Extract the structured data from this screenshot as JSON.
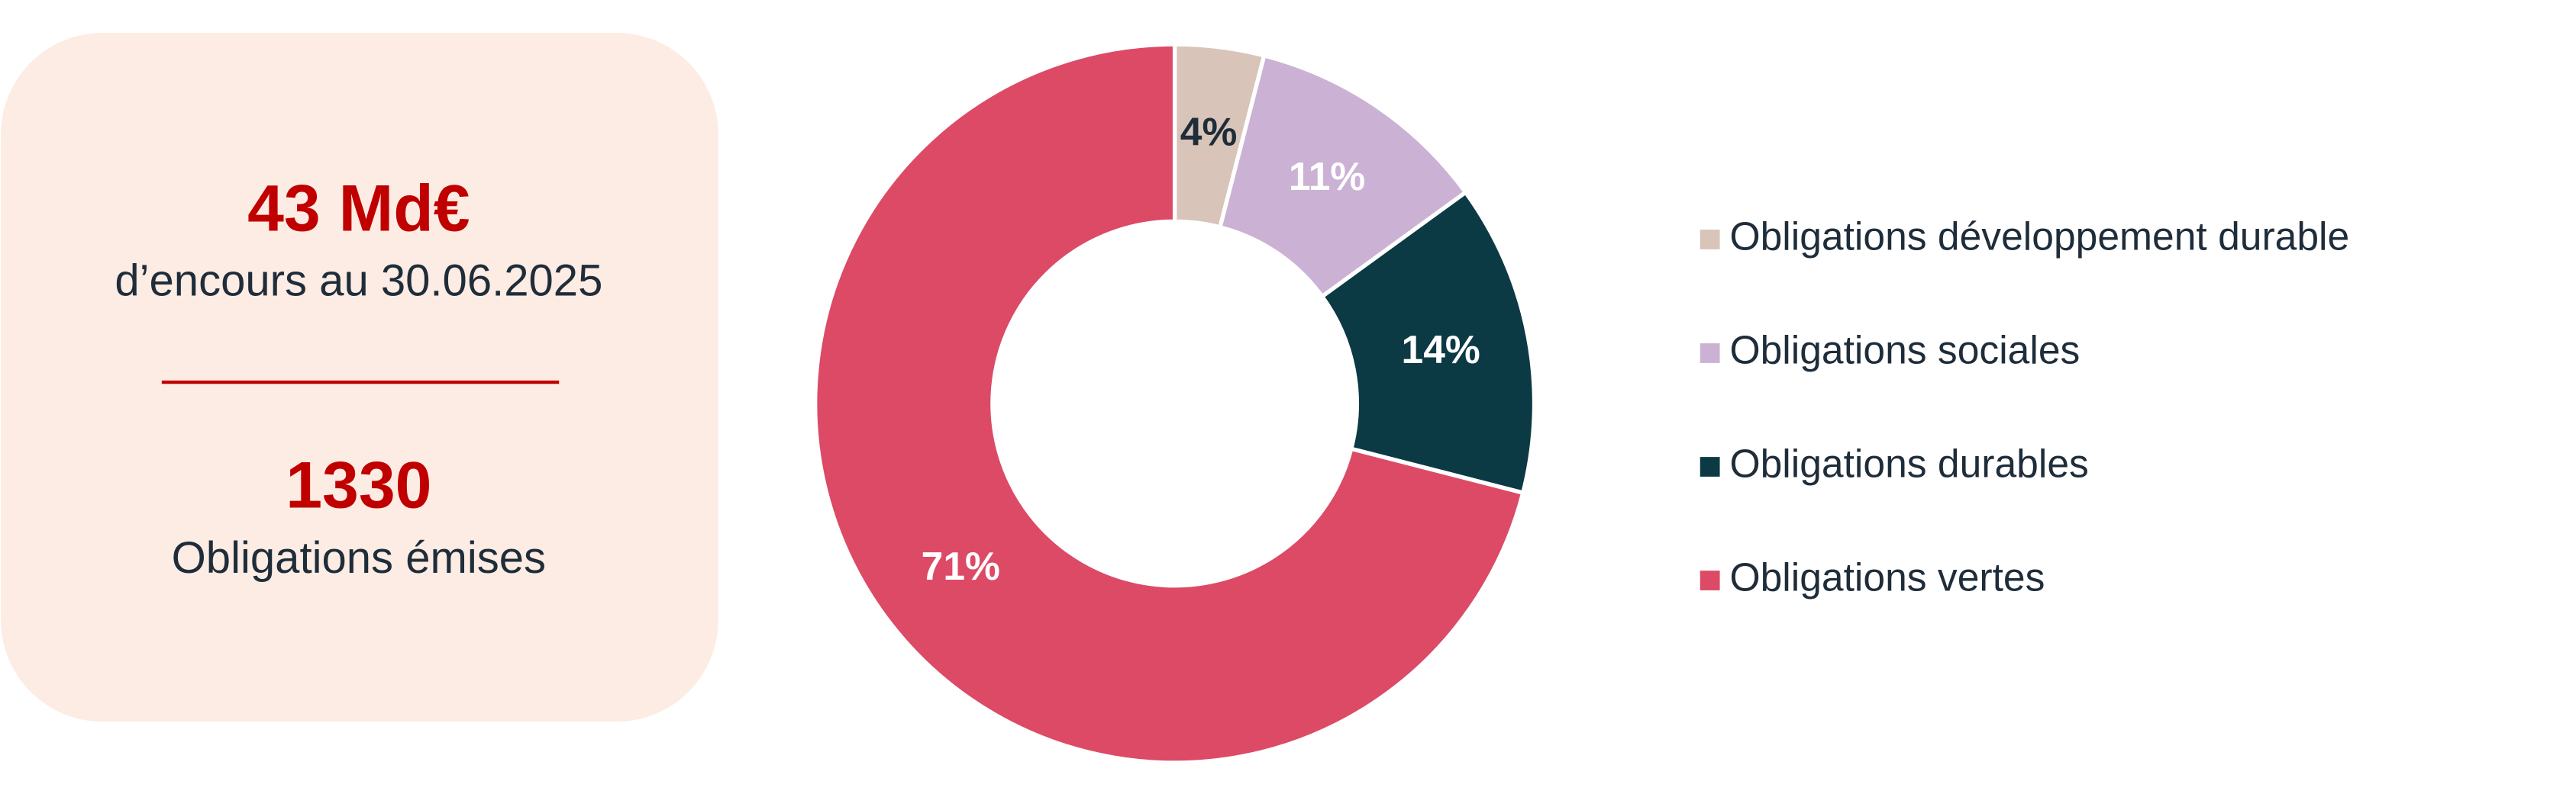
{
  "summary": {
    "amount": "43 Md€",
    "amount_caption": "d’encours au 30.06.2025",
    "count": "1330",
    "count_caption": "Obligations émises"
  },
  "chart_data": {
    "type": "pie",
    "donut": true,
    "categories": [
      "Obligations développement durable",
      "Obligations sociales",
      "Obligations durables",
      "Obligations vertes"
    ],
    "values": [
      4,
      11,
      14,
      71
    ],
    "value_labels": [
      "4%",
      "11%",
      "14%",
      "71%"
    ],
    "colors": [
      "#d8c4b8",
      "#cbb2d4",
      "#0b3a45",
      "#dc4a66"
    ],
    "value_label_colors": [
      "#1f2d3a",
      "#ffffff",
      "#ffffff",
      "#ffffff"
    ],
    "legend": "right"
  }
}
